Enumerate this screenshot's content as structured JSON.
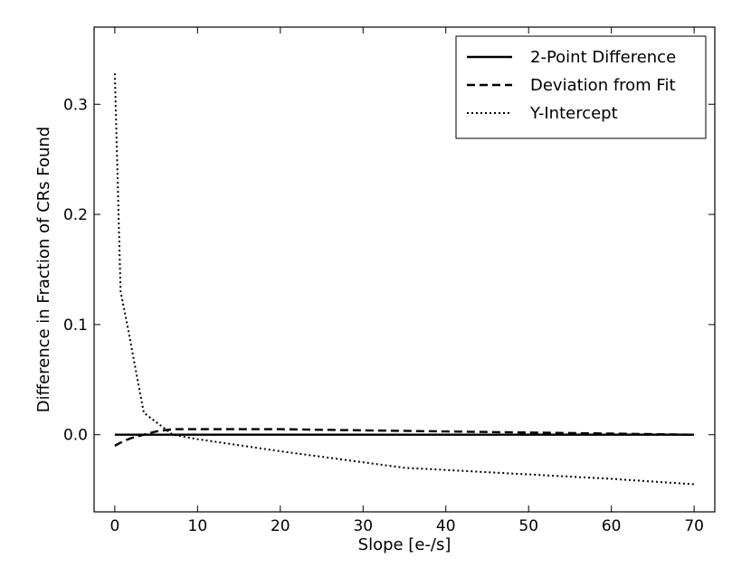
{
  "chart_data": {
    "type": "line",
    "title": "",
    "xlabel": "Slope [e-/s]",
    "ylabel": "Difference in Fraction of CRs Found",
    "xlim": [
      -2.5,
      72.5
    ],
    "ylim": [
      -0.07,
      0.37
    ],
    "xticks": [
      0,
      10,
      20,
      30,
      40,
      50,
      60,
      70
    ],
    "xtick_labels": [
      "0",
      "10",
      "20",
      "30",
      "40",
      "50",
      "60",
      "70"
    ],
    "yticks": [
      0.0,
      0.1,
      0.2,
      0.3
    ],
    "ytick_labels": [
      "0.0",
      "0.1",
      "0.2",
      "0.3"
    ],
    "grid": false,
    "legend_position": "top-right",
    "series": [
      {
        "name": "2-Point Difference",
        "style": "solid",
        "x": [
          0,
          3.5,
          7,
          10,
          20,
          30,
          40,
          50,
          60,
          70
        ],
        "y": [
          0.0,
          0.0,
          0.0,
          0.0,
          0.0,
          0.0,
          0.0,
          0.0,
          0.0,
          0.0
        ]
      },
      {
        "name": "Deviation from Fit",
        "style": "dashed",
        "x": [
          0,
          1,
          2,
          3.5,
          5,
          7,
          10,
          20,
          30,
          40,
          50,
          60,
          70
        ],
        "y": [
          -0.01,
          -0.006,
          -0.003,
          0.0,
          0.003,
          0.005,
          0.005,
          0.005,
          0.004,
          0.003,
          0.002,
          0.001,
          0.0
        ]
      },
      {
        "name": "Y-Intercept",
        "style": "dotted",
        "x": [
          0,
          0.7,
          1.5,
          3.5,
          7,
          10,
          20,
          30,
          35,
          40,
          50,
          60,
          70
        ],
        "y": [
          0.328,
          0.13,
          0.1,
          0.02,
          0.0,
          -0.004,
          -0.015,
          -0.025,
          -0.03,
          -0.032,
          -0.036,
          -0.04,
          -0.045
        ]
      }
    ]
  }
}
